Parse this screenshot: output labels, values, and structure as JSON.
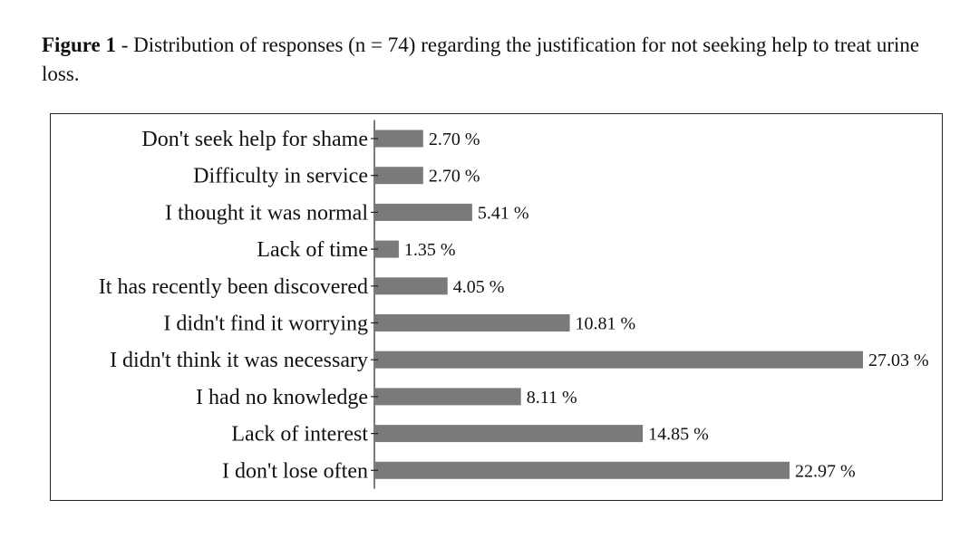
{
  "caption": {
    "label": "Figure 1",
    "text": " - Distribution of responses (n = 74) regarding the justification for not seeking help to treat urine loss."
  },
  "colors": {
    "bar": "#7a7a7a",
    "axis": "#222222",
    "text": "#111111"
  },
  "chart_data": {
    "type": "bar",
    "orientation": "horizontal",
    "categories": [
      "Don't seek help for shame",
      "Difficulty in service",
      "I thought it was normal",
      "Lack of time",
      "It has recently been discovered",
      "I didn't find it worrying",
      "I didn't think it was necessary",
      "I had no knowledge",
      "Lack of interest",
      "I don't lose often"
    ],
    "values": [
      2.7,
      2.7,
      5.41,
      1.35,
      4.05,
      10.81,
      27.03,
      8.11,
      14.85,
      22.97
    ],
    "data_labels": [
      "2.70 %",
      "2.70 %",
      "5.41 %",
      "1.35 %",
      "4.05 %",
      "10.81 %",
      "27.03 %",
      "8.11 %",
      "14.85 %",
      "22.97 %"
    ],
    "xlim": [
      0,
      27.03
    ],
    "grid": false,
    "legend": "none"
  }
}
